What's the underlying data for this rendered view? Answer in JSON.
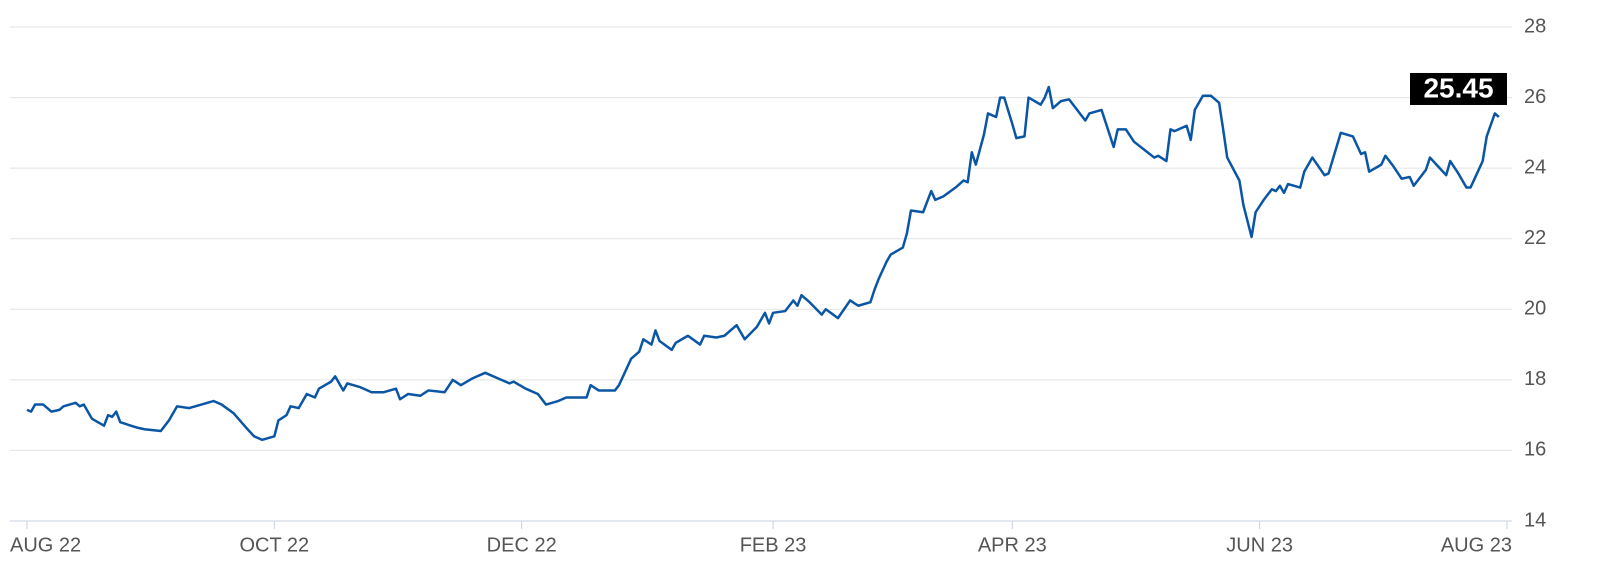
{
  "chart_data": {
    "type": "line",
    "color": "#0b56a4",
    "grid": true,
    "x": [
      0,
      1,
      2,
      4,
      6,
      8,
      9,
      12,
      13,
      14,
      16,
      19,
      20,
      21,
      22,
      23,
      27,
      29,
      33,
      35,
      37,
      40,
      43,
      46,
      48,
      51,
      54,
      56,
      58,
      61,
      62,
      64,
      65,
      67,
      69,
      71,
      72,
      75,
      76,
      78,
      79,
      82,
      85,
      88,
      91,
      92,
      94,
      97,
      99,
      103,
      105,
      107,
      110,
      113,
      117,
      119,
      120,
      123,
      126,
      128,
      131,
      133,
      138,
      139,
      141,
      145,
      146,
      149,
      151,
      152,
      154,
      155,
      156,
      159,
      160,
      163,
      166,
      167,
      170,
      172,
      175,
      177,
      180,
      181,
      182,
      183,
      184,
      187,
      189,
      190,
      191,
      193,
      196,
      197,
      200,
      203,
      205,
      208,
      209,
      210,
      212,
      213,
      216,
      217,
      218,
      221,
      223,
      224,
      226,
      229,
      231,
      232,
      233,
      234,
      236,
      237,
      239,
      240,
      241,
      243,
      244,
      246,
      247,
      250,
      251,
      252,
      253,
      255,
      257,
      260,
      261,
      262,
      265,
      266,
      268,
      269,
      271,
      273,
      278,
      279,
      281,
      282,
      283,
      286,
      287,
      288,
      290,
      292,
      294,
      295,
      296,
      299,
      300,
      302,
      303,
      305,
      307,
      308,
      309,
      310,
      311,
      314,
      315,
      317,
      320,
      321,
      324,
      327,
      329,
      330,
      331,
      334,
      335,
      337,
      339,
      341,
      342,
      345,
      346,
      348,
      350,
      351,
      353,
      355,
      356,
      359,
      360,
      362,
      363
    ],
    "values": [
      17.15,
      17.1,
      17.3,
      17.3,
      17.1,
      17.15,
      17.25,
      17.35,
      17.25,
      17.3,
      16.9,
      16.7,
      17.0,
      16.95,
      17.1,
      16.8,
      16.65,
      16.6,
      16.55,
      16.85,
      17.25,
      17.2,
      17.3,
      17.4,
      17.3,
      17.05,
      16.65,
      16.4,
      16.3,
      16.4,
      16.85,
      17.0,
      17.25,
      17.2,
      17.6,
      17.5,
      17.75,
      17.95,
      18.1,
      17.7,
      17.9,
      17.8,
      17.65,
      17.65,
      17.75,
      17.45,
      17.6,
      17.55,
      17.7,
      17.65,
      18.0,
      17.85,
      18.05,
      18.2,
      18.0,
      17.9,
      17.95,
      17.75,
      17.6,
      17.3,
      17.4,
      17.5,
      17.5,
      17.85,
      17.7,
      17.7,
      17.85,
      18.6,
      18.8,
      19.15,
      19.0,
      19.4,
      19.1,
      18.85,
      19.05,
      19.25,
      19.0,
      19.25,
      19.2,
      19.25,
      19.55,
      19.15,
      19.5,
      19.7,
      19.9,
      19.6,
      19.9,
      19.95,
      20.25,
      20.1,
      20.4,
      20.2,
      19.85,
      20.0,
      19.75,
      20.25,
      20.1,
      20.2,
      20.55,
      20.85,
      21.35,
      21.55,
      21.75,
      22.15,
      22.8,
      22.75,
      23.35,
      23.1,
      23.2,
      23.45,
      23.65,
      23.6,
      24.45,
      24.1,
      24.95,
      25.55,
      25.45,
      26.0,
      26.0,
      25.25,
      24.85,
      24.9,
      26.0,
      25.8,
      26.0,
      26.3,
      25.7,
      25.9,
      25.95,
      25.5,
      25.35,
      25.55,
      25.65,
      25.3,
      24.6,
      25.1,
      25.1,
      24.75,
      24.3,
      24.35,
      24.2,
      25.1,
      25.05,
      25.2,
      24.8,
      25.65,
      26.05,
      26.05,
      25.85,
      25.1,
      24.3,
      23.65,
      22.95,
      22.05,
      22.75,
      23.1,
      23.4,
      23.35,
      23.5,
      23.3,
      23.55,
      23.45,
      23.9,
      24.3,
      23.8,
      23.85,
      25.0,
      24.9,
      24.4,
      24.45,
      23.9,
      24.1,
      24.35,
      24.05,
      23.7,
      23.75,
      23.5,
      23.95,
      24.3,
      24.05,
      23.8,
      24.2,
      23.85,
      23.45,
      23.45,
      24.2,
      24.9,
      25.55,
      25.45
    ],
    "xlim": [
      0,
      365
    ],
    "xticks": [
      {
        "value": 0,
        "label": "AUG 22"
      },
      {
        "value": 61,
        "label": "OCT 22"
      },
      {
        "value": 122,
        "label": "DEC 22"
      },
      {
        "value": 184,
        "label": "FEB 23"
      },
      {
        "value": 243,
        "label": "APR 23"
      },
      {
        "value": 304,
        "label": "JUN 23"
      },
      {
        "value": 365,
        "label": "AUG 23"
      }
    ],
    "ylim": [
      14,
      28
    ],
    "yticks": [
      14,
      16,
      18,
      20,
      22,
      24,
      26,
      28
    ]
  }
}
